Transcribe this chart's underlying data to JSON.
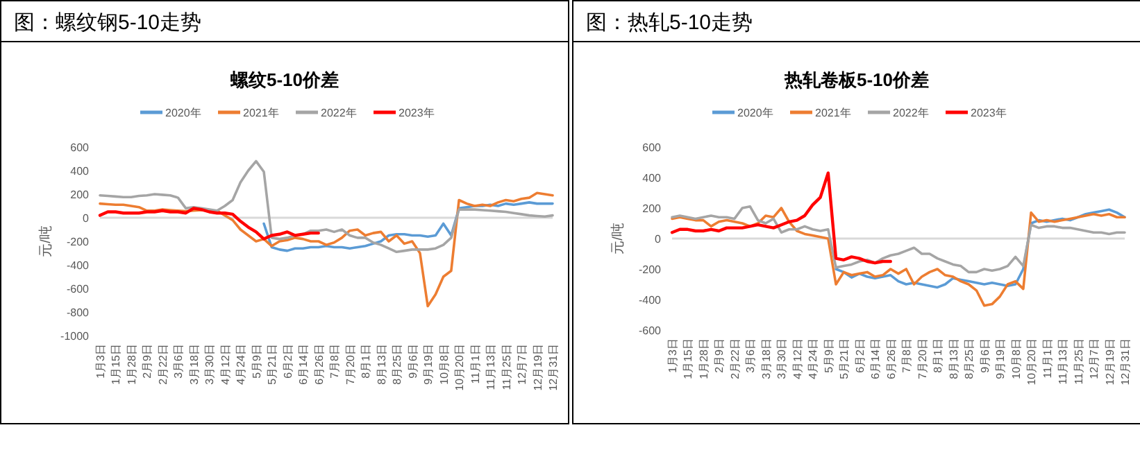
{
  "chart_data": [
    {
      "type": "line",
      "title": "螺纹5-10价差",
      "annotations": [
        "图：螺纹钢5-10走势"
      ],
      "ylabel": "元/吨",
      "legend": "top",
      "ylim": [
        -1000,
        600
      ],
      "yticks": [
        -1000,
        -800,
        -600,
        -400,
        -200,
        0,
        200,
        400,
        600
      ],
      "categories": [
        "1月3日",
        null,
        "1月15日",
        null,
        "1月28日",
        null,
        "2月9日",
        null,
        "2月22日",
        null,
        "3月6日",
        null,
        "3月18日",
        null,
        "3月30日",
        null,
        "4月12日",
        null,
        "4月24日",
        null,
        "5月9日",
        null,
        "5月21日",
        null,
        "6月2日",
        null,
        "6月14日",
        null,
        "6月26日",
        null,
        "7月8日",
        null,
        "7月20日",
        null,
        "8月1日",
        null,
        "8月13日",
        null,
        "8月25日",
        null,
        "9月6日",
        null,
        "9月19日",
        null,
        "10月8日",
        null,
        "10月20日",
        null,
        "11月1日",
        null,
        "11月13日",
        null,
        "11月25日",
        null,
        "12月7日",
        null,
        "12月19日",
        null,
        "12月31日"
      ],
      "series": [
        {
          "name": "2020年",
          "color": "#5b9bd5",
          "values": [
            null,
            null,
            null,
            null,
            null,
            null,
            null,
            null,
            null,
            null,
            null,
            null,
            null,
            null,
            null,
            null,
            null,
            null,
            null,
            null,
            null,
            -50,
            -250,
            -270,
            -280,
            -260,
            -260,
            -250,
            -250,
            -240,
            -250,
            -250,
            -260,
            -250,
            -240,
            -220,
            -200,
            -150,
            -140,
            -140,
            -150,
            -150,
            -160,
            -150,
            -50,
            -150,
            80,
            90,
            100,
            100,
            110,
            100,
            120,
            110,
            120,
            130,
            120,
            120,
            120
          ]
        },
        {
          "name": "2021年",
          "color": "#ed7d31",
          "values": [
            120,
            115,
            110,
            110,
            100,
            90,
            60,
            60,
            70,
            65,
            60,
            55,
            60,
            65,
            60,
            60,
            20,
            -20,
            -100,
            -150,
            -200,
            -180,
            -240,
            -200,
            -190,
            -170,
            -180,
            -200,
            -200,
            -230,
            -210,
            -170,
            -110,
            -100,
            -150,
            -130,
            -120,
            -200,
            -150,
            -220,
            -200,
            -300,
            -750,
            -650,
            -500,
            -450,
            150,
            120,
            100,
            110,
            100,
            130,
            150,
            140,
            160,
            170,
            210,
            200,
            190
          ]
        },
        {
          "name": "2022年",
          "color": "#a5a5a5",
          "values": [
            190,
            185,
            180,
            175,
            175,
            185,
            190,
            200,
            195,
            190,
            170,
            80,
            90,
            80,
            70,
            60,
            100,
            150,
            300,
            400,
            480,
            390,
            -170,
            -180,
            -170,
            -150,
            -140,
            -110,
            -110,
            -100,
            -120,
            -100,
            -150,
            -170,
            -170,
            -210,
            -230,
            -260,
            -290,
            -280,
            -270,
            -270,
            -270,
            -260,
            -230,
            -170,
            70,
            70,
            70,
            65,
            60,
            55,
            50,
            40,
            30,
            20,
            15,
            10,
            20
          ]
        },
        {
          "name": "2023年",
          "color": "#ff0000",
          "values": [
            20,
            50,
            50,
            40,
            40,
            40,
            50,
            50,
            60,
            50,
            50,
            40,
            80,
            70,
            50,
            40,
            40,
            30,
            -30,
            -80,
            -120,
            -180,
            -150,
            -140,
            -120,
            -150,
            -140,
            -130,
            -130,
            null,
            null,
            null,
            null,
            null,
            null,
            null,
            null,
            null,
            null,
            null,
            null,
            null,
            null,
            null,
            null,
            null,
            null,
            null,
            null,
            null,
            null,
            null,
            null,
            null,
            null,
            null,
            null,
            null,
            null
          ]
        }
      ]
    },
    {
      "type": "line",
      "title": "热轧卷板5-10价差",
      "annotations": [
        "图：热轧5-10走势"
      ],
      "ylabel": "元/吨",
      "legend": "top",
      "ylim": [
        -600,
        600
      ],
      "yticks": [
        -600,
        -400,
        -200,
        0,
        200,
        400,
        600
      ],
      "categories": [
        "1月3日",
        null,
        "1月15日",
        null,
        "1月28日",
        null,
        "2月9日",
        null,
        "2月22日",
        null,
        "3月6日",
        null,
        "3月18日",
        null,
        "3月30日",
        null,
        "4月12日",
        null,
        "4月24日",
        null,
        "5月9日",
        null,
        "5月21日",
        null,
        "6月2日",
        null,
        "6月14日",
        null,
        "6月26日",
        null,
        "7月8日",
        null,
        "7月20日",
        null,
        "8月1日",
        null,
        "8月13日",
        null,
        "8月25日",
        null,
        "9月6日",
        null,
        "9月19日",
        null,
        "10月8日",
        null,
        "10月20日",
        null,
        "11月1日",
        null,
        "11月13日",
        null,
        "11月25日",
        null,
        "12月7日",
        null,
        "12月19日",
        null,
        "12月31日"
      ],
      "series": [
        {
          "name": "2020年",
          "color": "#5b9bd5",
          "values": [
            null,
            null,
            null,
            null,
            null,
            null,
            null,
            null,
            null,
            null,
            null,
            null,
            null,
            null,
            null,
            null,
            null,
            null,
            null,
            null,
            null,
            -200,
            -220,
            -255,
            -230,
            -250,
            -260,
            -250,
            -240,
            -280,
            -300,
            -290,
            -300,
            -310,
            -320,
            -300,
            -260,
            -270,
            -280,
            -290,
            -300,
            -290,
            -300,
            -310,
            -300,
            -200,
            100,
            120,
            110,
            120,
            130,
            120,
            140,
            160,
            170,
            180,
            190,
            170,
            140
          ]
        },
        {
          "name": "2021年",
          "color": "#ed7d31",
          "values": [
            130,
            140,
            130,
            120,
            120,
            80,
            110,
            120,
            110,
            100,
            80,
            100,
            150,
            140,
            200,
            110,
            50,
            30,
            20,
            10,
            0,
            -300,
            -220,
            -240,
            -230,
            -220,
            -250,
            -240,
            -200,
            -230,
            -200,
            -300,
            -250,
            -220,
            -200,
            -240,
            -250,
            -280,
            -300,
            -340,
            -440,
            -430,
            -380,
            -300,
            -280,
            -330,
            170,
            110,
            120,
            110,
            120,
            130,
            140,
            150,
            160,
            150,
            160,
            140,
            140
          ]
        },
        {
          "name": "2022年",
          "color": "#a5a5a5",
          "values": [
            140,
            150,
            140,
            130,
            140,
            150,
            140,
            140,
            130,
            200,
            210,
            120,
            100,
            130,
            40,
            60,
            60,
            80,
            60,
            50,
            60,
            -190,
            -180,
            -170,
            -150,
            -140,
            -160,
            -130,
            -110,
            -100,
            -80,
            -60,
            -100,
            -100,
            -130,
            -150,
            -170,
            -180,
            -220,
            -220,
            -200,
            -210,
            -200,
            -180,
            -120,
            -180,
            90,
            70,
            80,
            80,
            70,
            70,
            60,
            50,
            40,
            40,
            30,
            40,
            40
          ]
        },
        {
          "name": "2023年",
          "color": "#ff0000",
          "values": [
            40,
            60,
            60,
            50,
            50,
            60,
            50,
            70,
            70,
            70,
            80,
            90,
            80,
            70,
            90,
            110,
            120,
            150,
            220,
            270,
            430,
            -130,
            -140,
            -120,
            -130,
            -150,
            -160,
            -150,
            -150,
            null,
            null,
            null,
            null,
            null,
            null,
            null,
            null,
            null,
            null,
            null,
            null,
            null,
            null,
            null,
            null,
            null,
            null,
            null,
            null,
            null,
            null,
            null,
            null,
            null,
            null,
            null,
            null,
            null,
            null
          ]
        }
      ]
    }
  ]
}
